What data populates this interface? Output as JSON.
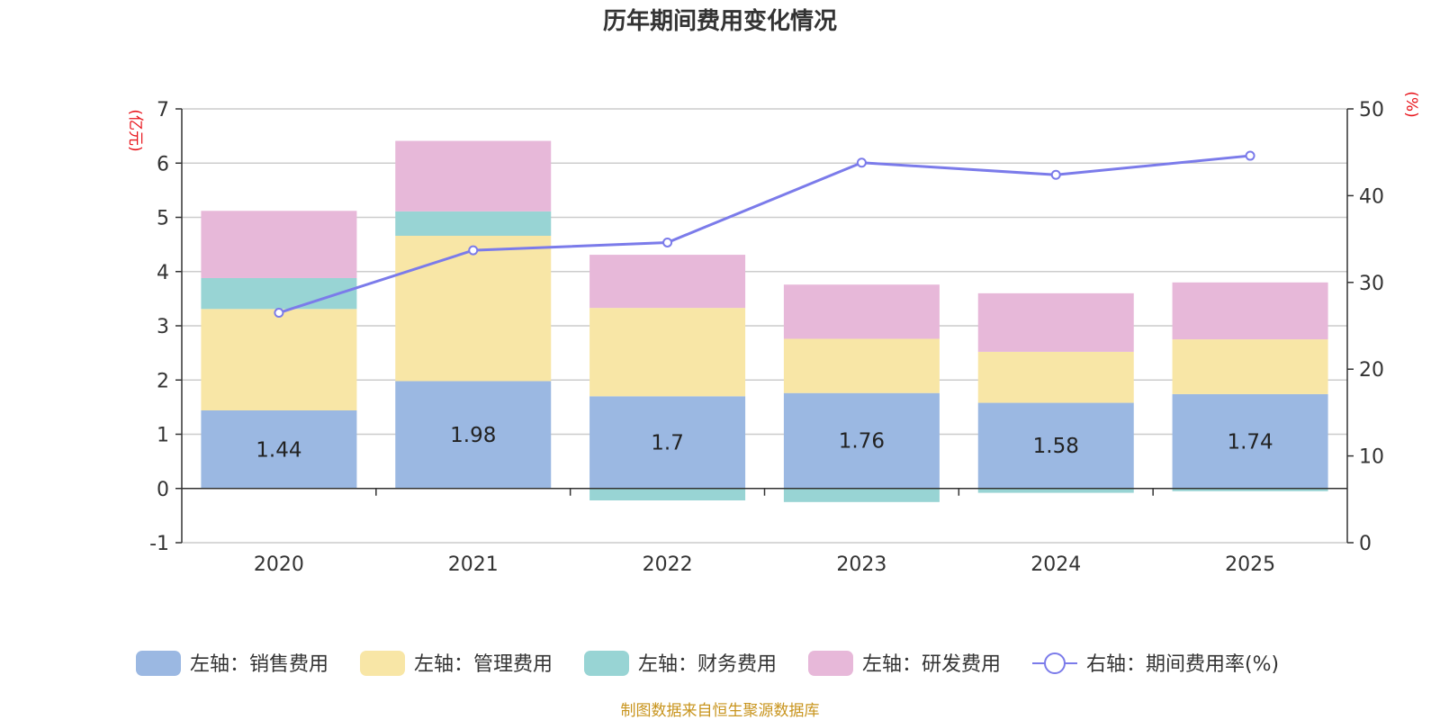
{
  "chart_data": {
    "type": "bar",
    "title": "历年期间费用变化情况",
    "categories": [
      "2020",
      "2021",
      "2022",
      "2023",
      "2024",
      "2025"
    ],
    "series": [
      {
        "name": "左轴：销售费用",
        "axis": "left",
        "type": "stacked-bar",
        "color": "#9bb8e2",
        "values": [
          1.44,
          1.98,
          1.7,
          1.76,
          1.58,
          1.74
        ],
        "labels": [
          "1.44",
          "1.98",
          "1.7",
          "1.76",
          "1.58",
          "1.74"
        ]
      },
      {
        "name": "左轴：管理费用",
        "axis": "left",
        "type": "stacked-bar",
        "color": "#f8e6a6",
        "values": [
          1.87,
          2.68,
          1.63,
          1.0,
          0.94,
          1.01
        ]
      },
      {
        "name": "左轴：财务费用",
        "axis": "left",
        "type": "stacked-bar",
        "color": "#98d4d4",
        "values": [
          0.57,
          0.45,
          -0.22,
          -0.25,
          -0.08,
          -0.05
        ]
      },
      {
        "name": "左轴：研发费用",
        "axis": "left",
        "type": "stacked-bar",
        "color": "#e7b8d9",
        "values": [
          1.24,
          1.3,
          0.98,
          1.0,
          1.08,
          1.05
        ]
      },
      {
        "name": "右轴：期间费用率(%)",
        "axis": "right",
        "type": "line",
        "color": "#7b7bea",
        "values": [
          26.5,
          33.7,
          34.6,
          43.8,
          42.4,
          44.6
        ]
      }
    ],
    "left_axis": {
      "unit": "(亿元)",
      "min": -1,
      "max": 7,
      "ticks": [
        "-1",
        "0",
        "1",
        "2",
        "3",
        "4",
        "5",
        "6",
        "7"
      ]
    },
    "right_axis": {
      "unit": "(%)",
      "min": 0,
      "max": 50,
      "ticks": [
        "0",
        "10",
        "20",
        "30",
        "40",
        "50"
      ]
    },
    "legend_position": "bottom",
    "source": "制图数据来自恒生聚源数据库"
  }
}
